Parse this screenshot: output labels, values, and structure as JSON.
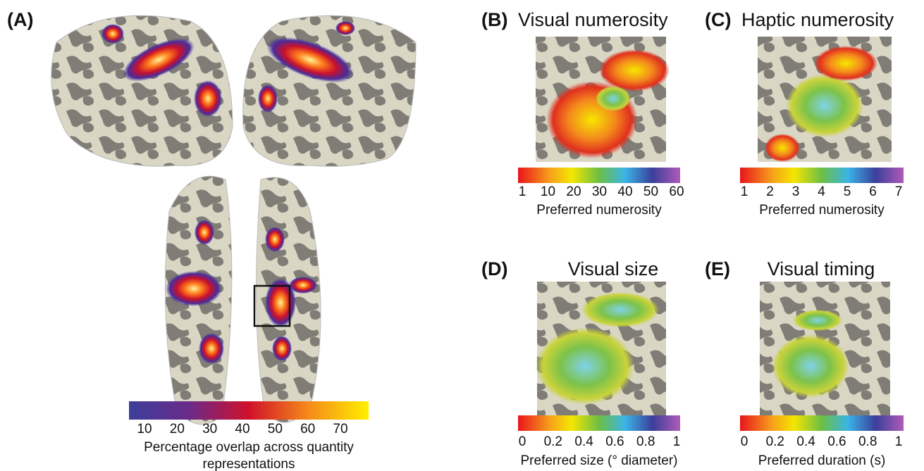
{
  "panels": [
    {
      "label": "(A)",
      "colorbar": {
        "ticks": [
          10,
          20,
          30,
          40,
          50,
          60,
          70
        ],
        "label": [
          "Percentage overlap across quantity",
          "representations"
        ]
      }
    },
    {
      "label": "(B)",
      "title": "Visual numerosity",
      "colorbar": {
        "ticks": [
          1,
          10,
          20,
          30,
          40,
          50,
          60
        ],
        "label": [
          "Preferred numerosity"
        ]
      }
    },
    {
      "label": "(C)",
      "title": "Haptic numerosity",
      "colorbar": {
        "ticks": [
          1,
          2,
          3,
          4,
          5,
          6,
          7
        ],
        "label": [
          "Preferred numerosity"
        ]
      }
    },
    {
      "label": "(D)",
      "title": "Visual size",
      "colorbar": {
        "ticks": [
          0,
          0.2,
          0.4,
          0.6,
          0.8,
          1
        ],
        "label": [
          "Preferred size (° diameter)"
        ]
      }
    },
    {
      "label": "(E)",
      "title": "Visual timing",
      "colorbar": {
        "ticks": [
          0,
          0.2,
          0.4,
          0.6,
          0.8,
          1
        ],
        "label": [
          "Preferred duration (s)"
        ]
      }
    }
  ]
}
